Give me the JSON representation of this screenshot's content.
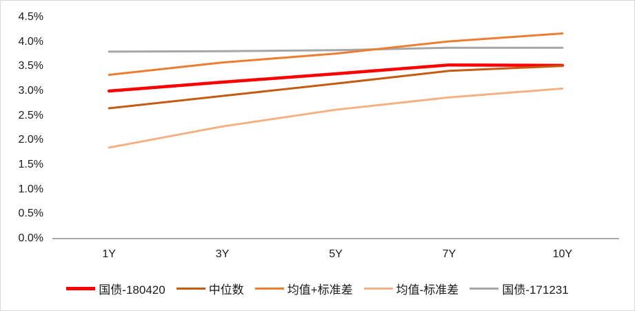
{
  "chart_data": {
    "type": "line",
    "title": "",
    "xlabel": "",
    "ylabel": "",
    "x": [
      "1Y",
      "3Y",
      "5Y",
      "7Y",
      "10Y"
    ],
    "series": [
      {
        "name": "国债-180420",
        "values": [
          3.0,
          3.18,
          3.35,
          3.53,
          3.52
        ],
        "color": "#fe0000",
        "width": 4.5
      },
      {
        "name": "中位数",
        "values": [
          2.65,
          2.9,
          3.15,
          3.41,
          3.51
        ],
        "color": "#c55a11",
        "width": 3
      },
      {
        "name": "均值+标准差",
        "values": [
          3.33,
          3.58,
          3.76,
          4.01,
          4.17
        ],
        "color": "#ed7d31",
        "width": 3
      },
      {
        "name": "均值-标准差",
        "values": [
          1.85,
          2.28,
          2.62,
          2.87,
          3.05
        ],
        "color": "#f4b183",
        "width": 3
      },
      {
        "name": "国债-171231",
        "values": [
          3.8,
          3.81,
          3.83,
          3.88,
          3.88
        ],
        "color": "#a6a6a6",
        "width": 3
      }
    ],
    "y_ticks": [
      "4.5%",
      "4.0%",
      "3.5%",
      "3.0%",
      "2.5%",
      "2.0%",
      "1.5%",
      "1.0%",
      "0.5%",
      "0.0%"
    ],
    "y_tick_values": [
      4.5,
      4.0,
      3.5,
      3.0,
      2.5,
      2.0,
      1.5,
      1.0,
      0.5,
      0.0
    ],
    "ylim": [
      0,
      4.5
    ],
    "grid": false,
    "legend_position": "bottom"
  },
  "colors": {
    "axis_line": "#8c8c8c",
    "frame_border": "#d9d9d9",
    "tick_text": "#1a1a1a",
    "background": "#ffffff"
  }
}
